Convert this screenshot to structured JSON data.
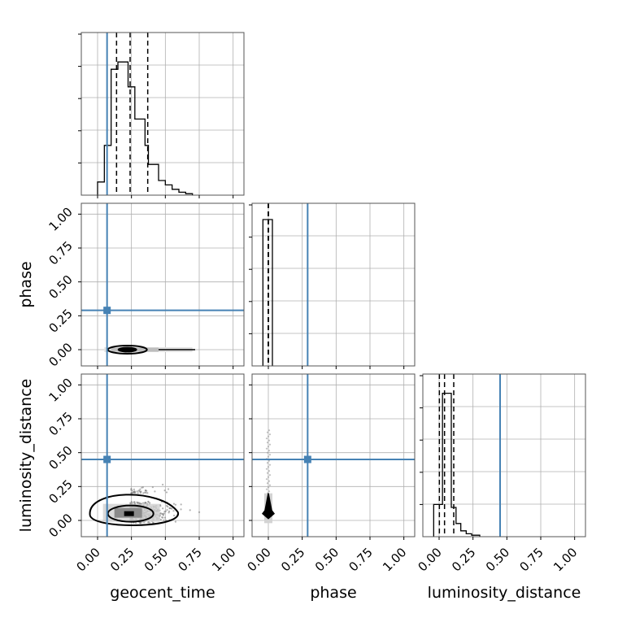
{
  "chart_data": {
    "type": "corner",
    "parameters": [
      "geocent_time",
      "phase",
      "luminosity_distance"
    ],
    "axis_labels": {
      "x": [
        "geocent_time",
        "phase",
        "luminosity_distance"
      ],
      "y": [
        "phase",
        "luminosity_distance"
      ]
    },
    "ticks": [
      0.0,
      0.25,
      0.5,
      0.75,
      1.0
    ],
    "tick_labels": [
      "0.00",
      "0.25",
      "0.50",
      "0.75",
      "1.00"
    ],
    "axis_range": [
      -0.12,
      1.08
    ],
    "grid": true,
    "truths": {
      "geocent_time": 0.07,
      "phase": 0.29,
      "luminosity_distance": 0.45
    },
    "truth_color": "#4682b4",
    "quantiles": {
      "geocent_time": [
        0.14,
        0.24,
        0.37
      ],
      "phase": [
        0.0,
        0.0,
        0.0
      ],
      "luminosity_distance": [
        0.02,
        0.04,
        0.09
      ]
    },
    "histograms": {
      "geocent_time": {
        "bin_edges": [
          0.0,
          0.025,
          0.05,
          0.075,
          0.1,
          0.125,
          0.15,
          0.175,
          0.2,
          0.225,
          0.25,
          0.275,
          0.3,
          0.325,
          0.35,
          0.375,
          0.4,
          0.45,
          0.5,
          0.55,
          0.6,
          0.65,
          0.7
        ],
        "counts": [
          0.09,
          0.09,
          0.34,
          0.34,
          0.86,
          0.86,
          0.91,
          0.91,
          0.91,
          0.74,
          0.74,
          0.52,
          0.52,
          0.52,
          0.34,
          0.21,
          0.21,
          0.1,
          0.07,
          0.04,
          0.02,
          0.01
        ]
      },
      "phase": {
        "bin_edges": [
          -0.04,
          0.0,
          0.03
        ],
        "counts": [
          1.0,
          1.0
        ]
      },
      "luminosity_distance": {
        "bin_edges": [
          -0.04,
          0.0,
          0.025,
          0.06,
          0.09,
          0.125,
          0.16,
          0.2,
          0.24,
          0.3
        ],
        "counts": [
          0.22,
          0.22,
          0.98,
          0.98,
          0.2,
          0.09,
          0.04,
          0.02,
          0.01
        ]
      }
    },
    "panels_2d": [
      {
        "x": "geocent_time",
        "y": "phase",
        "density_center": [
          0.22,
          0.0
        ]
      },
      {
        "x": "geocent_time",
        "y": "luminosity_distance",
        "density_center": [
          0.22,
          0.05
        ]
      },
      {
        "x": "phase",
        "y": "luminosity_distance",
        "density_center": [
          0.0,
          0.05
        ]
      }
    ]
  }
}
